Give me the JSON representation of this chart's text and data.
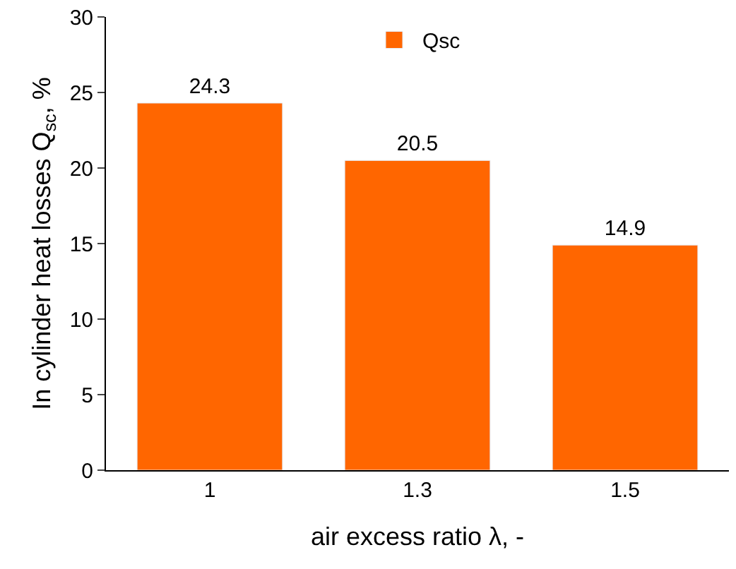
{
  "chart_data": {
    "type": "bar",
    "xlabel": "air excess ratio λ, -",
    "ylabel": "In cylinder heat losses Q$_{sc}$, %",
    "categories": [
      "1",
      "1.3",
      "1.5"
    ],
    "series": [
      {
        "name": "Qsc",
        "color": "#ff6600",
        "values": [
          24.3,
          20.5,
          14.9
        ]
      }
    ],
    "ylim": [
      0,
      30
    ],
    "yticks": [
      0,
      5,
      10,
      15,
      20,
      25,
      30
    ],
    "data_labels": true,
    "legend": "top"
  }
}
